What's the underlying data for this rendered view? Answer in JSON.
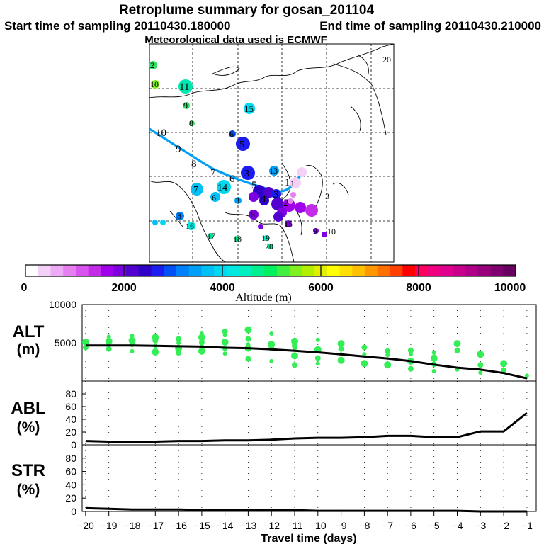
{
  "header": {
    "title": "Retroplume summary for gosan_201104",
    "start": "Start time of sampling 20110430.180000",
    "end": "End time of sampling 20110430.210000",
    "met": "Meteorological data used is ECMWF"
  },
  "colorbar": {
    "label": "Altitude (m)",
    "ticks": [
      "0",
      "2000",
      "4000",
      "6000",
      "8000",
      "10000"
    ],
    "colors": [
      "#ffffff",
      "#f4d2f8",
      "#eeaaf6",
      "#e67fef",
      "#d954ec",
      "#c42be8",
      "#a000ea",
      "#7c00e0",
      "#5200d0",
      "#2e00c8",
      "#1c1cf0",
      "#0050f5",
      "#0080fa",
      "#00a0f8",
      "#00c0f5",
      "#00d8f0",
      "#00e8e0",
      "#00f0c0",
      "#00f090",
      "#00f060",
      "#40f040",
      "#80f020",
      "#b0f000",
      "#e0f000",
      "#ffff00",
      "#ffe000",
      "#ffc000",
      "#ff9800",
      "#ff7000",
      "#ff4000",
      "#ff0000",
      "#ff0060",
      "#f00080",
      "#e00090",
      "#c8008c",
      "#b00088",
      "#98007c",
      "#800070",
      "#680060"
    ]
  },
  "map": {
    "numbers": [
      {
        "t": "2",
        "c": "#30e060"
      },
      {
        "t": "10",
        "c": "#80f020"
      },
      {
        "t": "11",
        "c": "#00e8b0"
      },
      {
        "t": "9",
        "c": "#30e060"
      },
      {
        "t": "8",
        "c": "#30e060"
      },
      {
        "t": "15",
        "c": "#00d8f0"
      },
      {
        "t": "6",
        "c": "#0050f5"
      },
      {
        "t": "5",
        "c": "#1c1cf0"
      },
      {
        "t": "3",
        "c": "#1c1cf0"
      },
      {
        "t": "13",
        "c": "#00a0f8"
      },
      {
        "t": "7",
        "c": "#00c0f5"
      },
      {
        "t": "14",
        "c": "#00d8f0"
      },
      {
        "t": "6",
        "c": "#00c0f5"
      },
      {
        "t": "3",
        "c": "#00a0f8"
      },
      {
        "t": "8",
        "c": "#0080fa"
      },
      {
        "t": "16",
        "c": "#00e8e0"
      },
      {
        "t": "17",
        "c": "#00e0a0"
      },
      {
        "t": "18",
        "c": "#00e080"
      },
      {
        "t": "19",
        "c": "#00e8c0"
      },
      {
        "t": "20",
        "c": "#00e090"
      },
      {
        "t": "15",
        "c": "#0050f5"
      },
      {
        "t": "8",
        "c": "#7c00e0"
      },
      {
        "t": "1",
        "c": "#f4d2f8"
      },
      {
        "t": "3",
        "c": "#c42be8"
      },
      {
        "t": "9",
        "c": "#7c00e0"
      },
      {
        "t": "10",
        "c": "#7c00e0"
      },
      {
        "t": "20",
        "c": "#30e060"
      }
    ],
    "path_labels": [
      "10",
      "9",
      "8",
      "7",
      "6",
      "5",
      "4",
      "3",
      "2",
      "1"
    ]
  },
  "chart_data": {
    "type": "line",
    "xlabel": "Travel time (days)",
    "x": [
      -20,
      -19,
      -18,
      -17,
      -16,
      -15,
      -14,
      -13,
      -12,
      -11,
      -10,
      -9,
      -8,
      -7,
      -6,
      -5,
      -4,
      -3,
      -2,
      -1
    ],
    "xticks": [
      "−20",
      "−19",
      "−18",
      "−17",
      "−16",
      "−15",
      "−14",
      "−13",
      "−12",
      "−11",
      "−10",
      "−9",
      "−8",
      "−7",
      "−6",
      "−5",
      "−4",
      "−3",
      "−2",
      "−1"
    ],
    "panels": [
      {
        "name": "alt",
        "label1": "ALT",
        "label2": "(m)",
        "ylim": [
          0,
          10000
        ],
        "yticks": [
          "10000",
          "5000"
        ],
        "tickvals": [
          10000,
          5000
        ],
        "series": [
          {
            "name": "mean altitude",
            "values": [
              4650,
              4650,
              4650,
              4600,
              4550,
              4500,
              4350,
              4300,
              4150,
              3950,
              3750,
              3500,
              3200,
              2950,
              2600,
              2150,
              1750,
              1500,
              1050,
              350
            ]
          }
        ],
        "scatter_color": "#33ee55",
        "scatter": [
          [
            -20,
            5100
          ],
          [
            -20,
            4400
          ],
          [
            -19,
            5800
          ],
          [
            -19,
            5200
          ],
          [
            -19,
            4200
          ],
          [
            -18,
            5900
          ],
          [
            -18,
            5300
          ],
          [
            -18,
            4800
          ],
          [
            -18,
            3900
          ],
          [
            -17,
            5700
          ],
          [
            -17,
            5300
          ],
          [
            -17,
            4600
          ],
          [
            -17,
            3800
          ],
          [
            -16,
            5500
          ],
          [
            -16,
            5000
          ],
          [
            -16,
            4300
          ],
          [
            -16,
            3700
          ],
          [
            -15,
            6200
          ],
          [
            -15,
            5700
          ],
          [
            -15,
            5100
          ],
          [
            -15,
            4600
          ],
          [
            -15,
            3900
          ],
          [
            -14,
            6500
          ],
          [
            -14,
            6000
          ],
          [
            -14,
            5100
          ],
          [
            -14,
            4300
          ],
          [
            -14,
            3600
          ],
          [
            -13,
            6700
          ],
          [
            -13,
            5500
          ],
          [
            -13,
            4800
          ],
          [
            -13,
            4300
          ],
          [
            -13,
            2900
          ],
          [
            -12,
            6200
          ],
          [
            -12,
            4800
          ],
          [
            -12,
            4300
          ],
          [
            -12,
            2600
          ],
          [
            -11,
            5200
          ],
          [
            -11,
            4600
          ],
          [
            -11,
            4200
          ],
          [
            -11,
            3300
          ],
          [
            -11,
            2100
          ],
          [
            -10,
            5400
          ],
          [
            -10,
            4100
          ],
          [
            -10,
            3000
          ],
          [
            -10,
            2300
          ],
          [
            -9,
            4900
          ],
          [
            -9,
            4200
          ],
          [
            -9,
            3500
          ],
          [
            -9,
            2700
          ],
          [
            -8,
            4400
          ],
          [
            -8,
            3500
          ],
          [
            -8,
            2300
          ],
          [
            -7,
            3900
          ],
          [
            -7,
            3400
          ],
          [
            -7,
            2100
          ],
          [
            -6,
            4000
          ],
          [
            -6,
            3500
          ],
          [
            -6,
            2600
          ],
          [
            -6,
            1600
          ],
          [
            -5,
            3700
          ],
          [
            -5,
            3000
          ],
          [
            -5,
            2200
          ],
          [
            -5,
            1300
          ],
          [
            -4,
            4900
          ],
          [
            -4,
            4000
          ],
          [
            -4,
            1500
          ],
          [
            -3,
            3500
          ],
          [
            -3,
            2100
          ],
          [
            -3,
            1100
          ],
          [
            -2,
            2300
          ],
          [
            -2,
            1400
          ],
          [
            -1,
            700
          ]
        ]
      },
      {
        "name": "abl",
        "label1": "ABL",
        "label2": "(%)",
        "ylim": [
          0,
          100
        ],
        "yticks": [
          "80",
          "60",
          "40",
          "20",
          "0"
        ],
        "tickvals": [
          80,
          60,
          40,
          20,
          0
        ],
        "series": [
          {
            "name": "ABL fraction",
            "values": [
              6,
              5,
              5,
              5,
              6,
              6,
              7,
              7,
              8,
              10,
              11,
              11,
              12,
              14,
              14,
              12,
              12,
              21,
              21,
              50
            ]
          }
        ]
      },
      {
        "name": "str",
        "label1": "STR",
        "label2": "(%)",
        "ylim": [
          0,
          100
        ],
        "yticks": [
          "80",
          "60",
          "40",
          "20",
          "0"
        ],
        "tickvals": [
          80,
          60,
          40,
          20,
          0
        ],
        "series": [
          {
            "name": "stratospheric fraction",
            "values": [
              5,
              4,
              3,
              3,
              3,
              2,
              2,
              2,
              2,
              2,
              1,
              1,
              1,
              1,
              1,
              1,
              1,
              0,
              0,
              0
            ]
          }
        ]
      }
    ]
  }
}
